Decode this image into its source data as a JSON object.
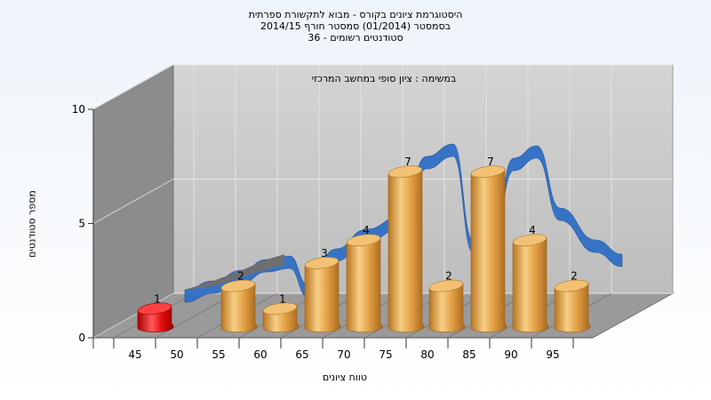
{
  "title": {
    "line1": "היסטוגרמת ציונים בקורס - מבוא לתקשורת ספרתית",
    "line2": "בסמסטר  (01/2014)  סמסטר חורף 2014/15",
    "line3": "סטודנטים רשומים - 36"
  },
  "chart_data": {
    "type": "bar",
    "subtitle": "במשימה : ציון סופי במחשב המרכזי",
    "xlabel": "טווח ציונים",
    "ylabel": "מספר סטודנטים",
    "ylim": [
      0,
      10
    ],
    "yticks": [
      "0",
      "5",
      "10"
    ],
    "xticks": [
      "45",
      "50",
      "55",
      "60",
      "65",
      "70",
      "75",
      "80",
      "85",
      "90",
      "95"
    ],
    "categories": [
      "45",
      "55",
      "60",
      "65",
      "70",
      "75",
      "80",
      "85",
      "90",
      "95"
    ],
    "values": [
      1,
      2,
      1,
      3,
      4,
      7,
      2,
      7,
      4,
      2
    ],
    "bar_labels": [
      "1",
      "2",
      "1",
      "3",
      "4",
      "7",
      "2",
      "7",
      "4",
      "2"
    ],
    "highlight_index": 0,
    "colors": {
      "bar": "#e6a54a",
      "bar_highlight": "#e81010",
      "curve": "#2f6fc6",
      "curve_start": "#6e6e6e",
      "wall": "#8c8c8c",
      "back_wall": "#c8c8c8",
      "floor": "#9a9a9a"
    },
    "grid": true,
    "legend": "none"
  }
}
